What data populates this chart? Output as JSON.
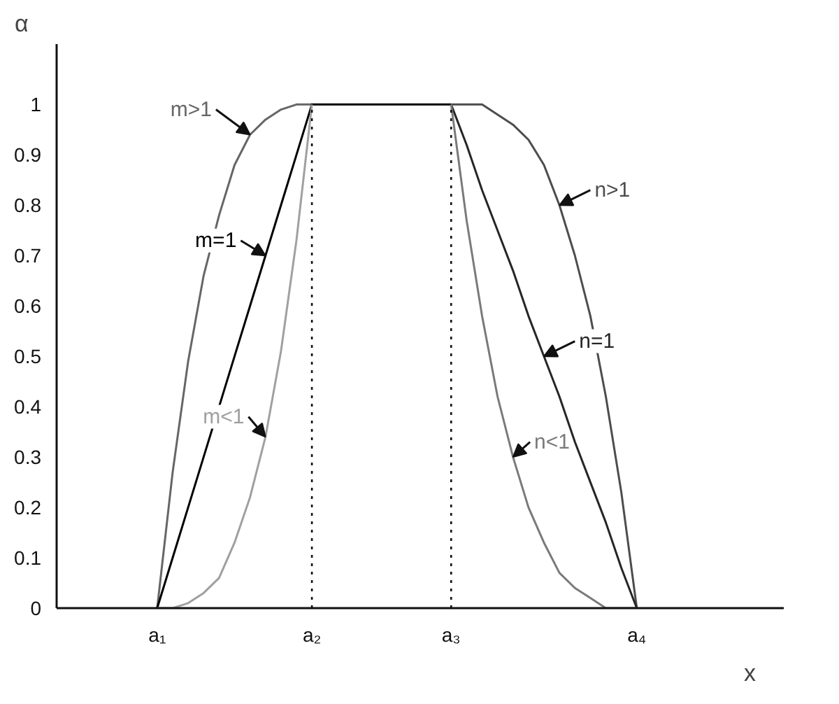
{
  "chart_data": {
    "type": "line",
    "ylabel": "α",
    "xlabel": "x",
    "categories": [
      null,
      null,
      null,
      null,
      null,
      null,
      "a₁",
      null,
      null,
      null,
      null,
      null,
      null,
      null,
      null,
      null,
      "a₂",
      null,
      null,
      null,
      null,
      null,
      null,
      null,
      null,
      "a₃",
      null,
      null,
      null,
      null,
      null,
      null,
      null,
      null,
      null,
      null,
      null,
      "a₄",
      null,
      null,
      null,
      null,
      null,
      null,
      null,
      null,
      null
    ],
    "ylim": [
      0,
      1.12
    ],
    "yticks": [
      0,
      0.1,
      0.2,
      0.3,
      0.4,
      0.5,
      0.6,
      0.7,
      0.8,
      0.9,
      1
    ],
    "grid": false,
    "legend": false,
    "marker": "none",
    "line_style": "solid",
    "series": [
      {
        "name": "m>1",
        "color": "#666666",
        "values": [
          null,
          null,
          null,
          null,
          null,
          null,
          0,
          0.27,
          0.49,
          0.66,
          0.78,
          0.88,
          0.94,
          0.97,
          0.99,
          1,
          1,
          null,
          null,
          null,
          null,
          null,
          null,
          null,
          null,
          null,
          null,
          null,
          null,
          null,
          null,
          null,
          null,
          null,
          null,
          null,
          null,
          null,
          null,
          null,
          null,
          null,
          null,
          null,
          null,
          null,
          null
        ]
      },
      {
        "name": "m=1",
        "color": "#000000",
        "values": [
          null,
          null,
          null,
          null,
          null,
          null,
          0,
          0.1,
          0.2,
          0.3,
          0.4,
          0.5,
          0.6,
          0.7,
          0.8,
          0.9,
          1,
          1,
          1,
          1,
          1,
          1,
          1,
          1,
          1,
          1,
          null,
          null,
          null,
          null,
          null,
          null,
          null,
          null,
          null,
          null,
          null,
          null,
          null,
          null,
          null,
          null,
          null,
          null,
          null,
          null,
          null
        ]
      },
      {
        "name": "m<1",
        "color": "#a0a0a0",
        "values": [
          null,
          null,
          null,
          null,
          null,
          null,
          0,
          0,
          0.01,
          0.03,
          0.06,
          0.13,
          0.22,
          0.34,
          0.51,
          0.73,
          1,
          null,
          null,
          null,
          null,
          null,
          null,
          null,
          null,
          null,
          null,
          null,
          null,
          null,
          null,
          null,
          null,
          null,
          null,
          null,
          null,
          null,
          null,
          null,
          null,
          null,
          null,
          null,
          null,
          null,
          null
        ]
      },
      {
        "name": "n>1",
        "color": "#4d4d4d",
        "values": [
          null,
          null,
          null,
          null,
          null,
          null,
          null,
          null,
          null,
          null,
          null,
          null,
          null,
          null,
          null,
          null,
          null,
          null,
          null,
          null,
          null,
          null,
          null,
          null,
          null,
          1,
          1,
          1,
          0.98,
          0.96,
          0.93,
          0.88,
          0.8,
          0.7,
          0.58,
          0.42,
          0.23,
          0,
          null,
          null,
          null,
          null,
          null,
          null,
          null,
          null,
          null
        ]
      },
      {
        "name": "n=1",
        "color": "#262626",
        "values": [
          null,
          null,
          null,
          null,
          null,
          null,
          null,
          null,
          null,
          null,
          null,
          null,
          null,
          null,
          null,
          null,
          null,
          null,
          null,
          null,
          null,
          null,
          null,
          null,
          null,
          1,
          0.92,
          0.83,
          0.75,
          0.67,
          0.58,
          0.5,
          0.42,
          0.33,
          0.25,
          0.17,
          0.08,
          0,
          null,
          null,
          null,
          null,
          null,
          null,
          null,
          null,
          null
        ]
      },
      {
        "name": "n<1",
        "color": "#7a7a7a",
        "values": [
          null,
          null,
          null,
          null,
          null,
          null,
          null,
          null,
          null,
          null,
          null,
          null,
          null,
          null,
          null,
          null,
          null,
          null,
          null,
          null,
          null,
          null,
          null,
          null,
          null,
          1,
          0.77,
          0.58,
          0.42,
          0.3,
          0.2,
          0.13,
          0.07,
          0.04,
          0.02,
          0,
          0,
          0,
          null,
          null,
          null,
          null,
          null,
          null,
          null,
          null,
          null
        ]
      }
    ],
    "ref_lines": [
      {
        "axis": "x",
        "value": "a₂",
        "color": "#111111",
        "line_style": "dotted"
      },
      {
        "axis": "x",
        "value": "a₃",
        "color": "#111111",
        "line_style": "dotted"
      }
    ]
  }
}
